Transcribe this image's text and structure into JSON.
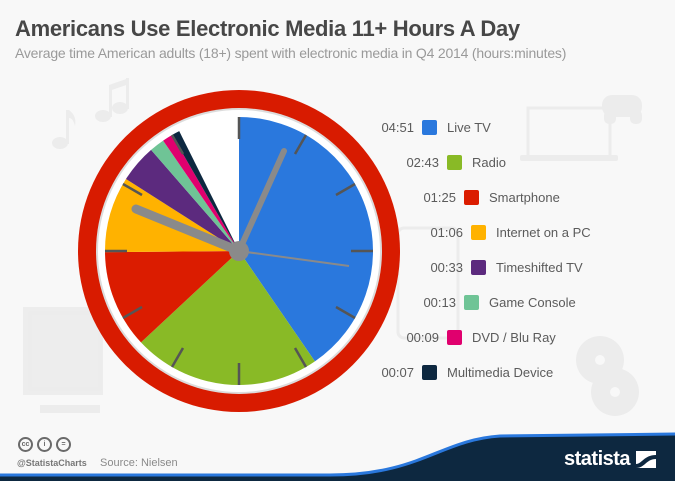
{
  "header": {
    "title": "Americans Use Electronic Media 11+ Hours A Day",
    "subtitle": "Average time American adults (18+) spent with electronic media in Q4 2014 (hours:minutes)"
  },
  "legend": [
    {
      "time": "04:51",
      "label": "Live TV",
      "color": "#2a78dd"
    },
    {
      "time": "02:43",
      "label": "Radio",
      "color": "#89ba26"
    },
    {
      "time": "01:25",
      "label": "Smartphone",
      "color": "#db1c00"
    },
    {
      "time": "01:06",
      "label": "Internet on a PC",
      "color": "#ffb200"
    },
    {
      "time": "00:33",
      "label": "Timeshifted TV",
      "color": "#5c2a7e"
    },
    {
      "time": "00:13",
      "label": "Game Console",
      "color": "#6fc496"
    },
    {
      "time": "00:09",
      "label": "DVD / Blu Ray",
      "color": "#e0006e"
    },
    {
      "time": "00:07",
      "label": "Multimedia Device",
      "color": "#0d2840"
    }
  ],
  "footer": {
    "license_icons": [
      "cc",
      "i",
      "="
    ],
    "handle": "@StatistaCharts",
    "source": "Source: Nielsen",
    "brand": "statista",
    "bar_color": "#0d2840",
    "accent_color": "#2a78dd"
  },
  "chart_data": {
    "type": "pie",
    "title": "Americans Use Electronic Media 11+ Hours A Day",
    "subtitle": "Average time American adults (18+) spent with electronic media in Q4 2014 (hours:minutes)",
    "unit": "minutes per day (drawn on a 12-hour clock face)",
    "categories": [
      "Live TV",
      "Radio",
      "Smartphone",
      "Internet on a PC",
      "Timeshifted TV",
      "Game Console",
      "DVD / Blu Ray",
      "Multimedia Device"
    ],
    "labels": [
      "04:51",
      "02:43",
      "01:25",
      "01:06",
      "00:33",
      "00:13",
      "00:09",
      "00:07"
    ],
    "values": [
      291,
      163,
      85,
      66,
      33,
      13,
      9,
      7
    ],
    "colors": [
      "#2a78dd",
      "#89ba26",
      "#db1c00",
      "#ffb200",
      "#5c2a7e",
      "#6fc496",
      "#e0006e",
      "#0d2840"
    ],
    "total_minutes": 667,
    "full_circle_minutes": 720,
    "legend_position": "right",
    "source": "Nielsen"
  }
}
